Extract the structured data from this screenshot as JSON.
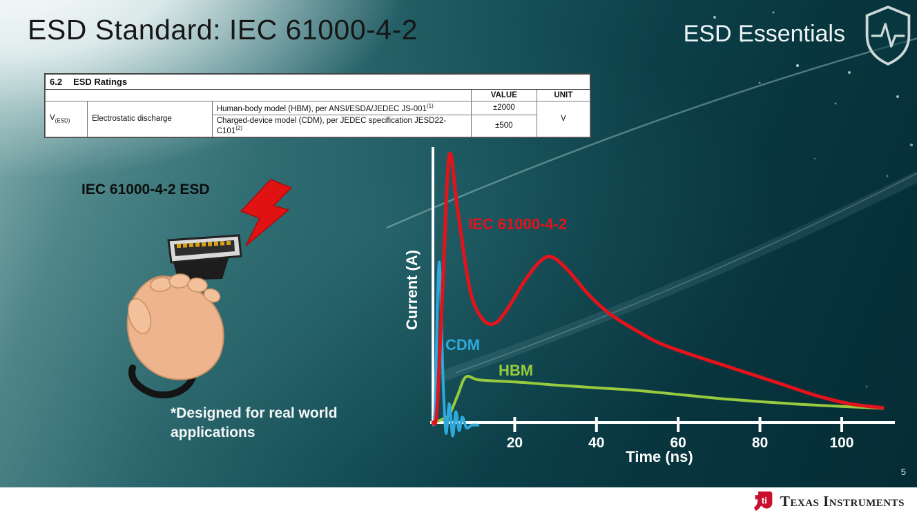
{
  "slide": {
    "title": "ESD Standard: IEC 61000-4-2",
    "brand": "ESD Essentials",
    "page_number": "5"
  },
  "table": {
    "section_number": "6.2",
    "section_title": "ESD Ratings",
    "col_value": "VALUE",
    "col_unit": "UNIT",
    "symbol_base": "V",
    "symbol_sub": "(ESD)",
    "parameter": "Electrostatic discharge",
    "rows": [
      {
        "description": "Human-body model (HBM), per ANSI/ESDA/JEDEC JS-001",
        "sup": "(1)",
        "value": "±2000"
      },
      {
        "description": "Charged-device model (CDM), per JEDEC specification JESD22-C101",
        "sup": "(2)",
        "value": "±500"
      }
    ],
    "unit": "V"
  },
  "figure": {
    "caption": "IEC 61000-4-2 ESD",
    "note_line1": "*Designed for real world",
    "note_line2": "applications"
  },
  "footer": {
    "logo_glyph": "ti",
    "logo_text": "Texas Instruments"
  },
  "chart_data": {
    "type": "line",
    "title": "",
    "xlabel": "Time (ns)",
    "ylabel": "Current (A)",
    "x_ticks": [
      20,
      40,
      60,
      80,
      100
    ],
    "xlim": [
      0,
      112
    ],
    "ylim": [
      0,
      1
    ],
    "grid": false,
    "legend_position": "inline-labels",
    "axis_color": "#ffffff",
    "series": [
      {
        "name": "IEC 61000-4-2",
        "color": "#e3131b",
        "x": [
          0,
          1,
          2.5,
          4,
          6,
          9,
          12,
          15,
          18,
          22,
          26,
          29,
          33,
          38,
          43,
          48,
          55,
          62,
          70,
          78,
          86,
          94,
          102,
          110
        ],
        "y": [
          0,
          0.05,
          0.55,
          1.0,
          0.8,
          0.5,
          0.39,
          0.37,
          0.42,
          0.52,
          0.6,
          0.62,
          0.57,
          0.48,
          0.41,
          0.36,
          0.3,
          0.26,
          0.22,
          0.18,
          0.14,
          0.1,
          0.07,
          0.055
        ]
      },
      {
        "name": "CDM",
        "color": "#2fa8dc",
        "x": [
          0,
          0.5,
          1.5,
          2.5,
          3.2,
          4,
          4.8,
          5.6,
          6.4,
          7.2,
          8.2,
          9.5,
          11
        ],
        "y": [
          0,
          0.05,
          0.6,
          0.15,
          -0.04,
          0.07,
          -0.05,
          0.04,
          -0.03,
          0.02,
          -0.02,
          -0.01,
          -0.01
        ]
      },
      {
        "name": "HBM",
        "color": "#97ca3e",
        "x": [
          0,
          2,
          4,
          6,
          8,
          11,
          16,
          22,
          30,
          40,
          50,
          60,
          70,
          80,
          90,
          100,
          110
        ],
        "y": [
          0,
          0.01,
          0.03,
          0.1,
          0.17,
          0.16,
          0.155,
          0.15,
          0.14,
          0.13,
          0.12,
          0.105,
          0.09,
          0.078,
          0.068,
          0.06,
          0.053
        ]
      }
    ]
  }
}
